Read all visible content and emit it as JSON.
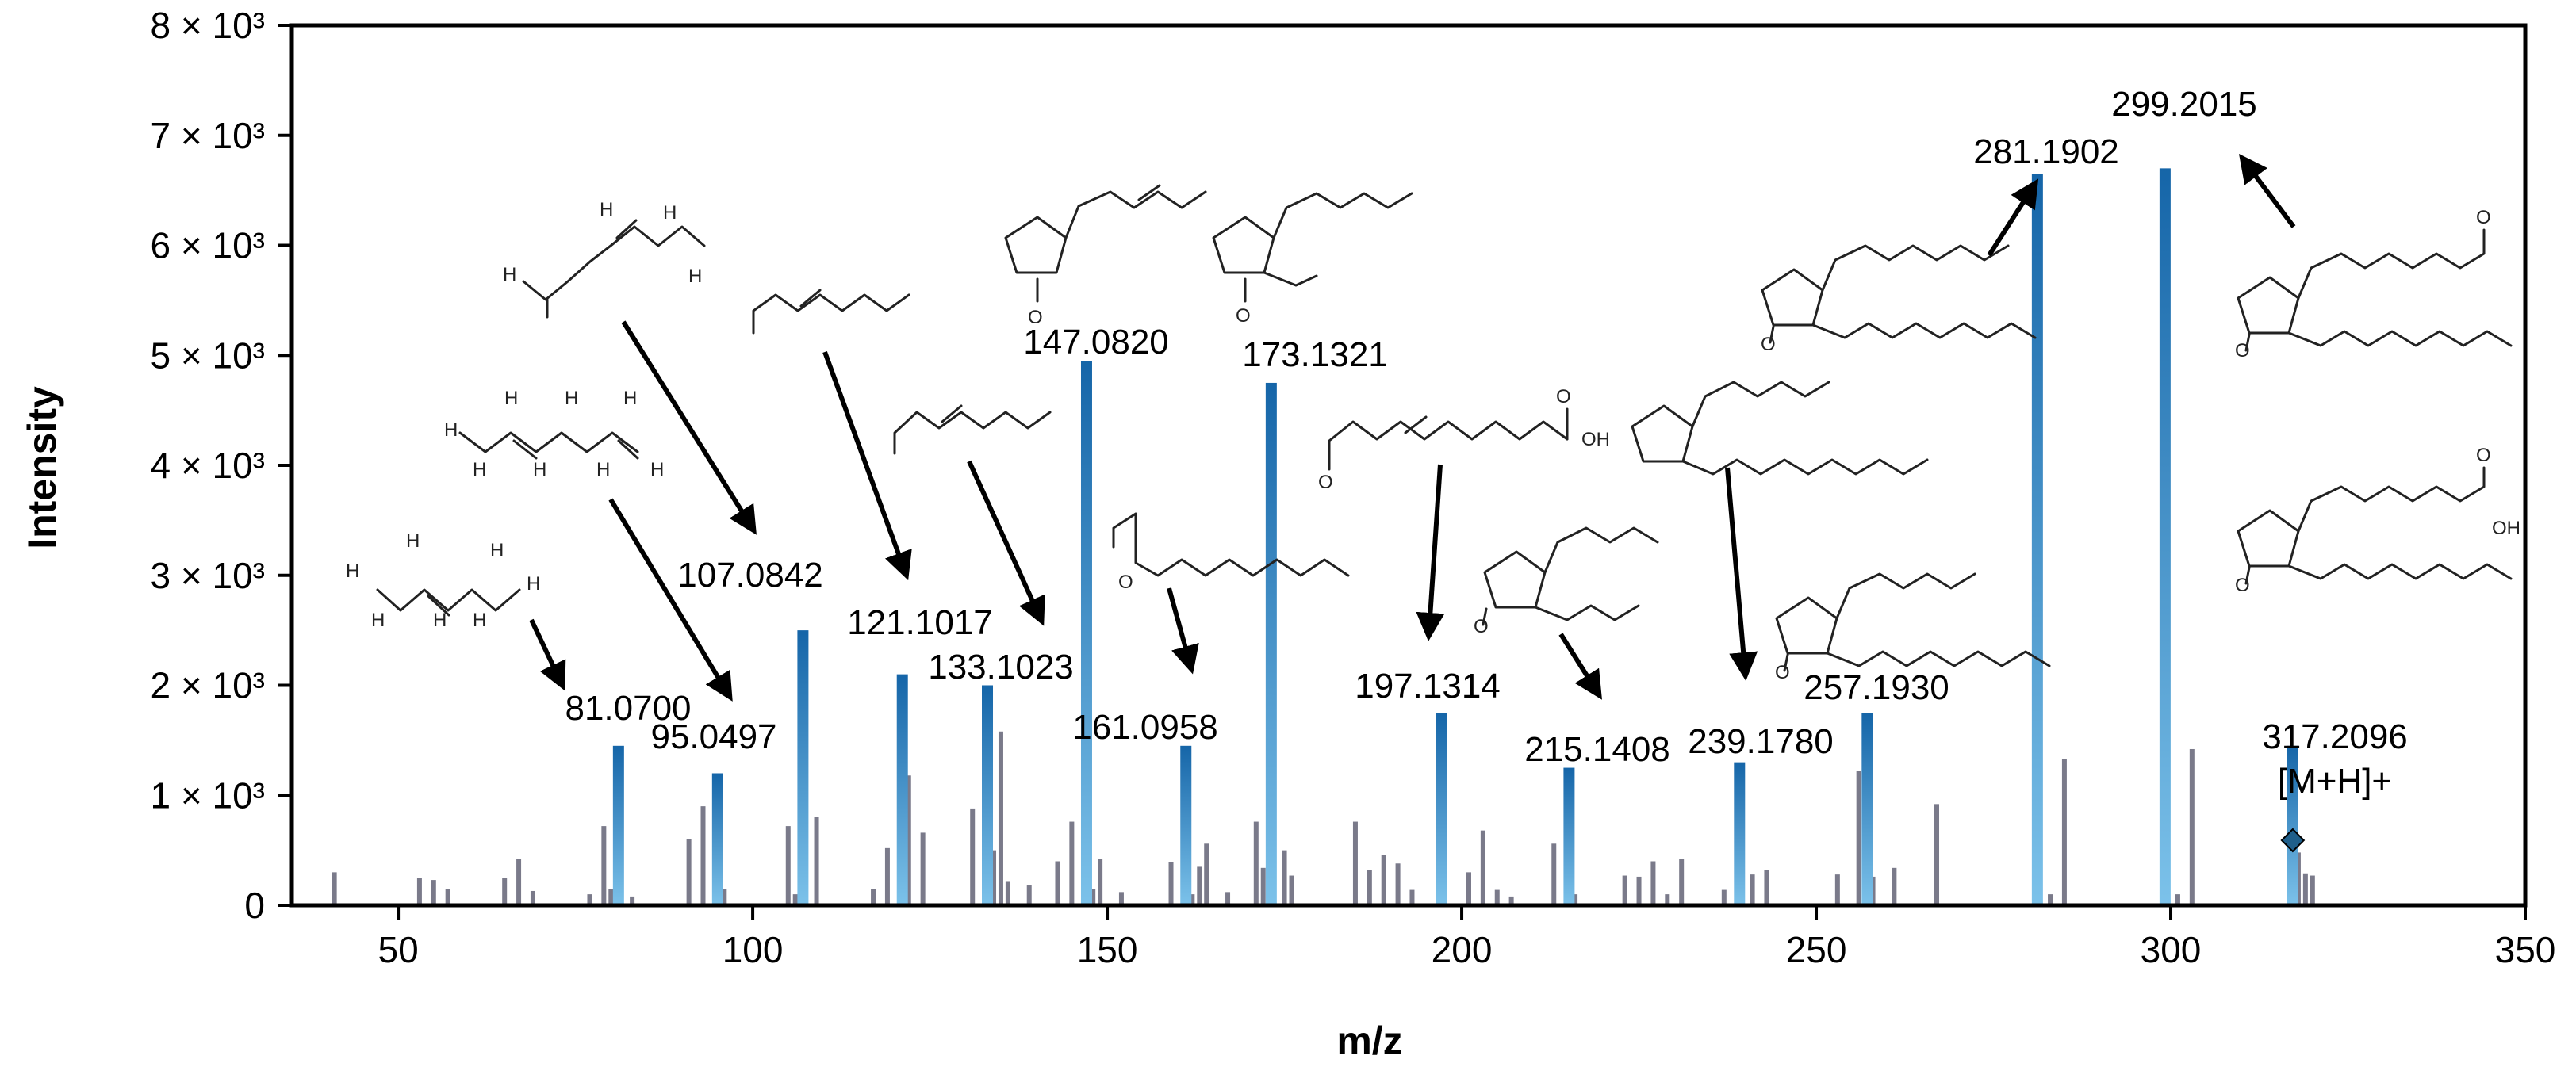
{
  "chart_data": {
    "type": "bar",
    "xlabel": "m/z",
    "ylabel": "Intensity",
    "xlim": [
      35,
      350
    ],
    "ylim": [
      0,
      8000
    ],
    "xticks": [
      50,
      100,
      150,
      200,
      250,
      300,
      350
    ],
    "yticks": [
      {
        "value": 0,
        "label": "0"
      },
      {
        "value": 1000,
        "label": "1 × 10³"
      },
      {
        "value": 2000,
        "label": "2 × 10³"
      },
      {
        "value": 3000,
        "label": "3 × 10³"
      },
      {
        "value": 4000,
        "label": "4 × 10³"
      },
      {
        "value": 5000,
        "label": "5 × 10³"
      },
      {
        "value": 6000,
        "label": "6 × 10³"
      },
      {
        "value": 7000,
        "label": "7 × 10³"
      },
      {
        "value": 8000,
        "label": "8 × 10³"
      }
    ],
    "grid": false,
    "labeled_peaks": [
      {
        "mz": 81.07,
        "intensity": 1450,
        "label": "81.0700"
      },
      {
        "mz": 95.0497,
        "intensity": 1200,
        "label": "95.0497"
      },
      {
        "mz": 107.0842,
        "intensity": 2500,
        "label": "107.0842"
      },
      {
        "mz": 121.1017,
        "intensity": 2100,
        "label": "121.1017"
      },
      {
        "mz": 133.1023,
        "intensity": 2000,
        "label": "133.1023"
      },
      {
        "mz": 147.082,
        "intensity": 4950,
        "label": "147.0820"
      },
      {
        "mz": 161.0958,
        "intensity": 1450,
        "label": "161.0958"
      },
      {
        "mz": 173.1321,
        "intensity": 4750,
        "label": "173.1321"
      },
      {
        "mz": 197.1314,
        "intensity": 1750,
        "label": "197.1314"
      },
      {
        "mz": 215.1408,
        "intensity": 1250,
        "label": "215.1408"
      },
      {
        "mz": 239.178,
        "intensity": 1300,
        "label": "239.1780"
      },
      {
        "mz": 257.193,
        "intensity": 1750,
        "label": "257.1930"
      },
      {
        "mz": 281.1902,
        "intensity": 6650,
        "label": "281.1902"
      },
      {
        "mz": 299.2015,
        "intensity": 6700,
        "label": "299.2015"
      },
      {
        "mz": 317.2096,
        "intensity": 1450,
        "label": "317.2096",
        "sublabel": "[M+H]+",
        "precursor": true
      }
    ],
    "minor_peaks": [
      {
        "mz": 41,
        "intensity": 300
      },
      {
        "mz": 53,
        "intensity": 250
      },
      {
        "mz": 55,
        "intensity": 230
      },
      {
        "mz": 57,
        "intensity": 150
      },
      {
        "mz": 65,
        "intensity": 250
      },
      {
        "mz": 67,
        "intensity": 420
      },
      {
        "mz": 69,
        "intensity": 130
      },
      {
        "mz": 77,
        "intensity": 100
      },
      {
        "mz": 79,
        "intensity": 720
      },
      {
        "mz": 80,
        "intensity": 150
      },
      {
        "mz": 83,
        "intensity": 80
      },
      {
        "mz": 91,
        "intensity": 600
      },
      {
        "mz": 93,
        "intensity": 900
      },
      {
        "mz": 96,
        "intensity": 150
      },
      {
        "mz": 105,
        "intensity": 720
      },
      {
        "mz": 106,
        "intensity": 100
      },
      {
        "mz": 109,
        "intensity": 800
      },
      {
        "mz": 117,
        "intensity": 150
      },
      {
        "mz": 119,
        "intensity": 520
      },
      {
        "mz": 122,
        "intensity": 1180
      },
      {
        "mz": 124,
        "intensity": 660
      },
      {
        "mz": 131,
        "intensity": 880
      },
      {
        "mz": 134,
        "intensity": 500
      },
      {
        "mz": 135,
        "intensity": 1580
      },
      {
        "mz": 136,
        "intensity": 220
      },
      {
        "mz": 139,
        "intensity": 180
      },
      {
        "mz": 143,
        "intensity": 400
      },
      {
        "mz": 145,
        "intensity": 760
      },
      {
        "mz": 148,
        "intensity": 150
      },
      {
        "mz": 149,
        "intensity": 420
      },
      {
        "mz": 152,
        "intensity": 120
      },
      {
        "mz": 159,
        "intensity": 390
      },
      {
        "mz": 162,
        "intensity": 100
      },
      {
        "mz": 163,
        "intensity": 350
      },
      {
        "mz": 164,
        "intensity": 560
      },
      {
        "mz": 167,
        "intensity": 120
      },
      {
        "mz": 171,
        "intensity": 760
      },
      {
        "mz": 172,
        "intensity": 340
      },
      {
        "mz": 175,
        "intensity": 500
      },
      {
        "mz": 176,
        "intensity": 270
      },
      {
        "mz": 185,
        "intensity": 760
      },
      {
        "mz": 187,
        "intensity": 320
      },
      {
        "mz": 189,
        "intensity": 460
      },
      {
        "mz": 191,
        "intensity": 380
      },
      {
        "mz": 193,
        "intensity": 140
      },
      {
        "mz": 201,
        "intensity": 300
      },
      {
        "mz": 203,
        "intensity": 680
      },
      {
        "mz": 205,
        "intensity": 140
      },
      {
        "mz": 207,
        "intensity": 80
      },
      {
        "mz": 213,
        "intensity": 560
      },
      {
        "mz": 216,
        "intensity": 100
      },
      {
        "mz": 223,
        "intensity": 270
      },
      {
        "mz": 225,
        "intensity": 260
      },
      {
        "mz": 227,
        "intensity": 400
      },
      {
        "mz": 229,
        "intensity": 100
      },
      {
        "mz": 231,
        "intensity": 420
      },
      {
        "mz": 237,
        "intensity": 140
      },
      {
        "mz": 241,
        "intensity": 280
      },
      {
        "mz": 243,
        "intensity": 320
      },
      {
        "mz": 253,
        "intensity": 280
      },
      {
        "mz": 256,
        "intensity": 1220
      },
      {
        "mz": 258,
        "intensity": 260
      },
      {
        "mz": 261,
        "intensity": 340
      },
      {
        "mz": 267,
        "intensity": 920
      },
      {
        "mz": 283,
        "intensity": 100
      },
      {
        "mz": 285,
        "intensity": 1330
      },
      {
        "mz": 301,
        "intensity": 100
      },
      {
        "mz": 303,
        "intensity": 1420
      },
      {
        "mz": 318,
        "intensity": 480
      },
      {
        "mz": 319,
        "intensity": 290
      },
      {
        "mz": 320,
        "intensity": 270
      }
    ],
    "colors": {
      "labeled_peak_top": "#1565a8",
      "labeled_peak_bottom": "#7cc2ea",
      "minor_peak": "#7a7a8a",
      "precursor_marker": "#1f5f8b",
      "axis": "#000000"
    }
  },
  "structures": {
    "atom_O": "O",
    "atom_H": "H",
    "group_OH": "OH"
  }
}
